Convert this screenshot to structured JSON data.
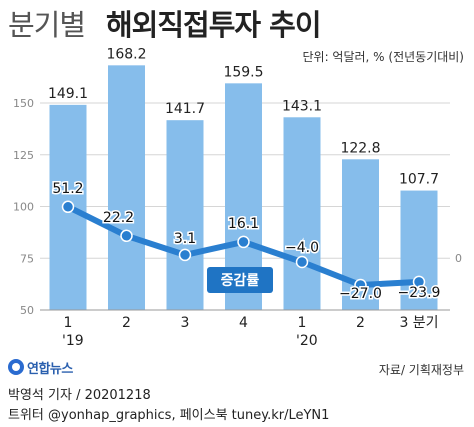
{
  "header": {
    "title_light": "분기별",
    "title_bold": "해외직접투자 추이",
    "unit": "단위: 억달러, % (전년동기대비)"
  },
  "chart_data": {
    "type": "bar",
    "categories": [
      "1",
      "2",
      "3",
      "4",
      "1",
      "2",
      "3 분기"
    ],
    "year_labels": [
      "'19",
      "",
      "",
      "",
      "'20",
      "",
      ""
    ],
    "series": [
      {
        "name": "",
        "type": "bar",
        "axis": "left",
        "values": [
          149.1,
          168.2,
          141.7,
          159.5,
          143.1,
          122.8,
          107.7
        ]
      },
      {
        "name": "증감률",
        "type": "line",
        "axis": "right",
        "values": [
          51.2,
          22.2,
          3.1,
          16.1,
          -4.0,
          -27.0,
          -23.9
        ]
      }
    ],
    "bar_labels": [
      "149.1",
      "168.2",
      "141.7",
      "159.5",
      "143.1",
      "122.8",
      "107.7"
    ],
    "line_labels": [
      "51.2",
      "22.2",
      "3.1",
      "16.1",
      "−4.0",
      "−27.0",
      "−23.9"
    ],
    "left_axis": {
      "ticks": [
        50,
        75,
        100,
        125,
        150
      ],
      "range": [
        50,
        175
      ]
    },
    "right_axis": {
      "ticks": [
        0
      ]
    },
    "line_legend": "증감률",
    "colors": {
      "bar": "#86bdeb",
      "line": "#2a7fd0",
      "legend_bg": "#1f74c4",
      "grid": "#d6d6d6"
    }
  },
  "footer": {
    "source": "자료/ 기획재정부",
    "logo_text": "연합뉴스",
    "credit": "박영석 기자 /  20201218",
    "credit2": "트위터 @yonhap_graphics, 페이스북 tuney.kr/LeYN1"
  }
}
